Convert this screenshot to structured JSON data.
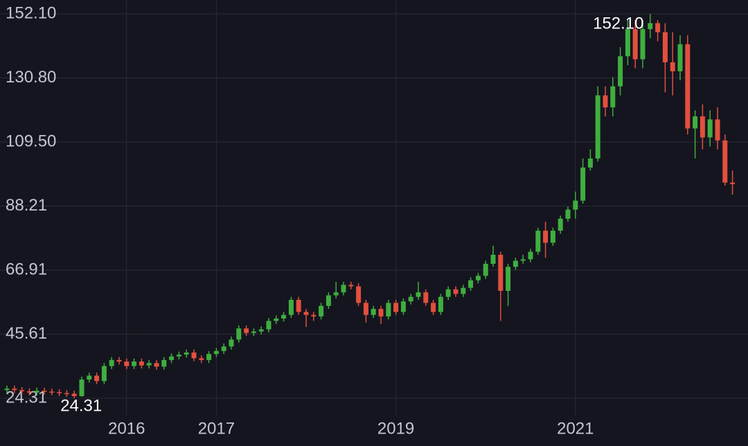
{
  "chart_data": {
    "type": "candlestick",
    "categories": [
      null,
      null,
      null,
      null,
      null,
      null,
      null,
      null,
      null,
      null,
      null,
      null,
      null,
      null,
      null,
      null,
      "2016",
      null,
      null,
      null,
      null,
      null,
      null,
      null,
      null,
      null,
      null,
      null,
      "2017",
      null,
      null,
      null,
      null,
      null,
      null,
      null,
      null,
      null,
      null,
      null,
      null,
      null,
      null,
      null,
      null,
      null,
      null,
      null,
      null,
      null,
      null,
      null,
      "2019",
      null,
      null,
      null,
      null,
      null,
      null,
      null,
      null,
      null,
      null,
      null,
      null,
      null,
      null,
      null,
      null,
      null,
      null,
      null,
      null,
      null,
      null,
      null,
      "2021",
      null,
      null,
      null,
      null,
      null,
      null,
      null,
      null,
      null,
      null,
      null,
      null,
      null,
      null,
      null,
      null,
      null,
      null,
      null,
      null,
      null
    ],
    "open": [
      27.0,
      27.5,
      27.0,
      26.6,
      26.2,
      26.8,
      26.5,
      26.3,
      26.0,
      25.8,
      25.0,
      30.5,
      31.8,
      30.0,
      35.0,
      37.0,
      36.5,
      35.0,
      36.5,
      35.2,
      36.0,
      34.8,
      37.0,
      38.2,
      38.8,
      39.5,
      37.6,
      37.0,
      39.0,
      40.0,
      41.5,
      43.8,
      47.5,
      46.0,
      46.5,
      47.2,
      50.0,
      50.8,
      52.0,
      57.0,
      53.0,
      52.0,
      51.5,
      55.0,
      58.5,
      59.5,
      62.0,
      61.5,
      56.0,
      52.0,
      54.0,
      51.5,
      56.0,
      53.0,
      56.5,
      58.0,
      59.5,
      56.0,
      53.0,
      58.0,
      60.5,
      59.0,
      61.0,
      63.5,
      65.0,
      69.0,
      72.0,
      60.0,
      68.0,
      70.0,
      70.5,
      73.0,
      80.0,
      76.0,
      80.0,
      84.0,
      87.0,
      90.0,
      101.0,
      104.0,
      125.0,
      121.0,
      128.0,
      138.0,
      147.0,
      137.0,
      147.0,
      149.0,
      146.0,
      136.0,
      133.0,
      142.0,
      114.0,
      118.0,
      111.0,
      117.0,
      110.0,
      96.0
    ],
    "high": [
      28.5,
      28.5,
      28.0,
      27.6,
      27.8,
      27.8,
      27.5,
      27.3,
      27.0,
      26.8,
      31.5,
      32.8,
      32.8,
      36.0,
      38.0,
      38.0,
      37.5,
      37.5,
      37.5,
      37.0,
      37.0,
      38.0,
      39.2,
      39.8,
      40.5,
      40.5,
      38.6,
      40.0,
      41.0,
      42.5,
      44.8,
      48.5,
      48.5,
      47.5,
      48.2,
      51.0,
      51.8,
      53.0,
      58.0,
      58.0,
      54.0,
      53.0,
      56.0,
      59.5,
      63.0,
      63.0,
      63.0,
      62.5,
      57.0,
      55.0,
      55.0,
      57.0,
      57.0,
      57.5,
      59.0,
      63.0,
      60.5,
      57.0,
      59.0,
      61.5,
      61.5,
      62.0,
      64.5,
      66.0,
      70.0,
      75.0,
      73.0,
      69.0,
      71.0,
      72.0,
      74.0,
      81.0,
      83.0,
      81.0,
      85.0,
      88.0,
      93.0,
      104.0,
      107.0,
      128.0,
      128.0,
      131.0,
      141.0,
      150.0,
      150.0,
      150.0,
      152.1,
      150.0,
      149.0,
      146.0,
      145.0,
      145.0,
      120.0,
      122.0,
      120.0,
      121.0,
      112.0,
      100.0
    ],
    "low": [
      26.0,
      26.0,
      25.6,
      25.2,
      25.2,
      25.5,
      25.3,
      25.0,
      24.8,
      24.31,
      24.8,
      29.5,
      29.0,
      29.0,
      34.0,
      35.5,
      34.0,
      34.0,
      34.2,
      34.2,
      33.8,
      33.8,
      36.0,
      37.2,
      37.8,
      36.6,
      36.0,
      36.0,
      38.0,
      39.0,
      40.5,
      42.8,
      45.0,
      45.0,
      45.5,
      46.2,
      49.0,
      49.8,
      51.0,
      52.0,
      48.0,
      50.0,
      50.5,
      54.0,
      57.5,
      58.5,
      60.5,
      55.0,
      49.5,
      51.0,
      49.0,
      50.5,
      52.0,
      52.0,
      55.5,
      57.0,
      55.0,
      52.0,
      52.0,
      57.0,
      58.0,
      58.0,
      60.0,
      62.5,
      64.0,
      68.0,
      50.0,
      55.0,
      67.0,
      69.0,
      69.5,
      72.0,
      71.0,
      75.0,
      79.0,
      83.0,
      84.0,
      89.0,
      100.0,
      103.0,
      118.0,
      118.0,
      125.0,
      135.0,
      134.0,
      134.0,
      144.0,
      143.0,
      126.0,
      125.0,
      130.0,
      112.0,
      104.0,
      107.0,
      108.0,
      107.0,
      95.0,
      92.0
    ],
    "close": [
      27.5,
      27.0,
      26.6,
      26.2,
      26.8,
      26.5,
      26.3,
      26.0,
      25.8,
      25.0,
      30.5,
      31.8,
      30.0,
      35.0,
      37.0,
      36.5,
      35.0,
      36.5,
      35.2,
      36.0,
      34.8,
      37.0,
      38.2,
      38.8,
      39.5,
      37.6,
      37.0,
      39.0,
      40.0,
      41.5,
      43.8,
      47.5,
      46.0,
      46.5,
      47.2,
      50.0,
      50.8,
      52.0,
      57.0,
      53.0,
      52.0,
      51.5,
      55.0,
      58.5,
      59.5,
      62.0,
      61.5,
      56.0,
      52.0,
      54.0,
      51.5,
      56.0,
      53.0,
      56.5,
      58.0,
      59.5,
      56.0,
      53.0,
      58.0,
      60.5,
      59.0,
      61.0,
      63.5,
      65.0,
      69.0,
      72.0,
      60.0,
      68.0,
      70.0,
      70.5,
      73.0,
      80.0,
      76.0,
      80.0,
      84.0,
      87.0,
      90.0,
      101.0,
      104.0,
      125.0,
      121.0,
      128.0,
      138.0,
      147.0,
      137.0,
      147.0,
      149.0,
      146.0,
      136.0,
      133.0,
      142.0,
      114.0,
      118.0,
      111.0,
      117.0,
      110.0,
      96.0,
      95.5
    ],
    "high_label": "152.10",
    "low_label": "24.31",
    "up_color": "#3fae3f",
    "down_color": "#e2503e",
    "ylim": [
      18.55,
      156.7
    ],
    "yticks": [
      24.31,
      45.61,
      66.91,
      88.21,
      {
        "value": 109.5,
        "label": "109.50"
      },
      {
        "value": 130.8,
        "label": "130.80"
      },
      {
        "value": 152.1,
        "label": "152.10"
      }
    ],
    "grid": true
  }
}
